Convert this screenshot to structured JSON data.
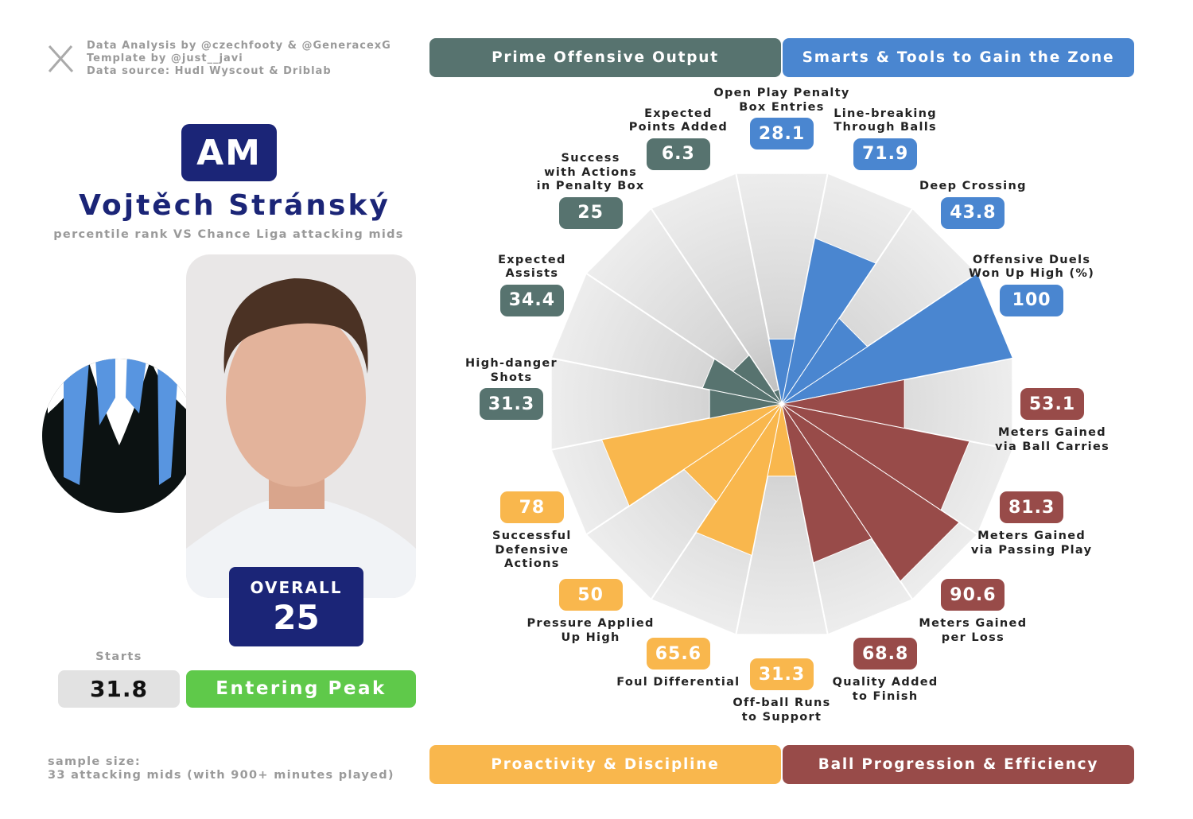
{
  "header": {
    "credits": [
      "Data Analysis by @czechfooty & @GeneracexG",
      "Template by @just__javi",
      "Data source: Hudl Wyscout & Driblab"
    ]
  },
  "player": {
    "position": "AM",
    "name": "Vojtěch Stránský",
    "subtitle": "percentile rank VS Chance Liga attacking mids",
    "overall_label": "OVERALL",
    "overall": 25,
    "starts_label": "Starts",
    "starts": 31.8,
    "status": "Entering Peak"
  },
  "footer": {
    "sample_size": [
      "sample size:",
      "33 attacking mids (with 900+ minutes played)"
    ]
  },
  "chart_data": {
    "type": "pizza",
    "ylim": [
      0,
      100
    ],
    "series": [
      {
        "name": "Smarts & Tools to Gain the Zone",
        "color": "#4a86d0",
        "categories": [
          "Open Play Penalty\nBox Entries",
          "Line-breaking\nThrough Balls",
          "Deep Crossing",
          "Offensive Duels\nWon Up High (%)"
        ],
        "values": [
          28.1,
          71.9,
          43.8,
          100
        ]
      },
      {
        "name": "Ball Progression & Efficiency",
        "color": "#984b49",
        "categories": [
          "Meters Gained\nvia Ball Carries",
          "Meters Gained\nvia Passing Play",
          "Meters Gained\nper Loss",
          "Quality Added\nto Finish"
        ],
        "values": [
          53.1,
          81.3,
          90.6,
          68.8
        ]
      },
      {
        "name": "Proactivity & Discipline",
        "color": "#f9b74d",
        "categories": [
          "Off-ball Runs\nto Support",
          "Foul Differential",
          "Pressure Applied\nUp High",
          "Successful\nDefensive\nActions"
        ],
        "values": [
          31.3,
          65.6,
          50,
          78
        ]
      },
      {
        "name": "Prime Offensive Output",
        "color": "#57736f",
        "categories": [
          "High-danger\nShots",
          "Expected\nAssists",
          "Success\nwith Actions\nin Penalty Box",
          "Expected\nPoints Added"
        ],
        "values": [
          31.3,
          34.4,
          25,
          6.3
        ]
      }
    ]
  }
}
